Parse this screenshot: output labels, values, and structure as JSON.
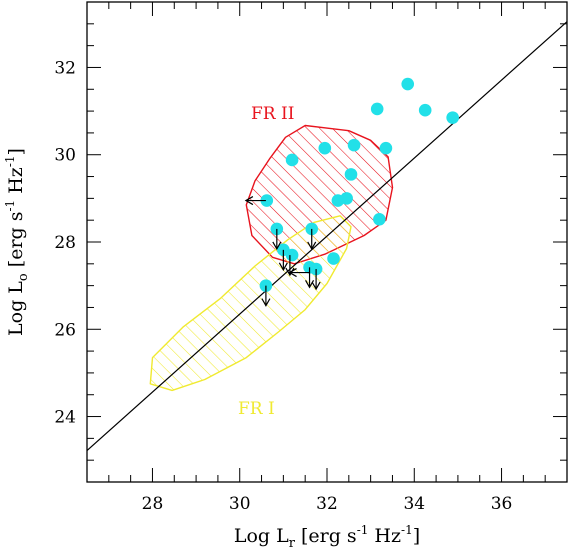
{
  "chart_data": {
    "type": "scatter",
    "xlabel": {
      "base": "Log L",
      "sub": "r",
      "rest": " [erg s",
      "sup1": "-1",
      "mid": " Hz",
      "sup2": "-1",
      "end": "]"
    },
    "ylabel": {
      "base": "Log L",
      "sub": "o",
      "rest": " [erg s",
      "sup1": "-1",
      "mid": " Hz",
      "sup2": "-1",
      "end": "]"
    },
    "xlim": [
      26.5,
      37.5
    ],
    "ylim": [
      22.5,
      33.5
    ],
    "x_ticks": [
      28,
      30,
      32,
      34,
      36
    ],
    "y_ticks": [
      24,
      26,
      28,
      30,
      32
    ],
    "x_tick_labels": [
      "28",
      "30",
      "32",
      "34",
      "36"
    ],
    "y_tick_labels": [
      "24",
      "26",
      "28",
      "30",
      "32"
    ],
    "grid": false,
    "points_color": "#22e0e8",
    "points": [
      {
        "x": 33.85,
        "y": 31.62
      },
      {
        "x": 34.25,
        "y": 31.02
      },
      {
        "x": 34.88,
        "y": 30.85
      },
      {
        "x": 33.15,
        "y": 31.05
      },
      {
        "x": 31.95,
        "y": 30.15
      },
      {
        "x": 32.62,
        "y": 30.22
      },
      {
        "x": 33.35,
        "y": 30.15
      },
      {
        "x": 31.2,
        "y": 29.88
      },
      {
        "x": 32.55,
        "y": 29.55
      },
      {
        "x": 30.62,
        "y": 28.95
      },
      {
        "x": 32.25,
        "y": 28.95
      },
      {
        "x": 32.45,
        "y": 29.0
      },
      {
        "x": 33.2,
        "y": 28.52
      },
      {
        "x": 30.85,
        "y": 28.3
      },
      {
        "x": 31.65,
        "y": 28.3
      },
      {
        "x": 31.0,
        "y": 27.82
      },
      {
        "x": 31.2,
        "y": 27.7
      },
      {
        "x": 32.15,
        "y": 27.62
      },
      {
        "x": 31.6,
        "y": 27.42
      },
      {
        "x": 31.75,
        "y": 27.38
      },
      {
        "x": 30.6,
        "y": 27.0
      }
    ],
    "upper_limits": [
      {
        "x": 30.6,
        "y": 28.95,
        "dir": "left"
      },
      {
        "x": 30.85,
        "y": 28.3,
        "dir": "down"
      },
      {
        "x": 31.65,
        "y": 28.3,
        "dir": "down"
      },
      {
        "x": 31.0,
        "y": 27.82,
        "dir": "down"
      },
      {
        "x": 31.15,
        "y": 27.7,
        "dir": "down"
      },
      {
        "x": 31.6,
        "y": 27.42,
        "dir": "down"
      },
      {
        "x": 31.75,
        "y": 27.38,
        "dir": "down"
      },
      {
        "x": 31.6,
        "y": 27.3,
        "dir": "left"
      },
      {
        "x": 30.6,
        "y": 27.0,
        "dir": "down"
      }
    ],
    "fit_line": {
      "x": [
        26.5,
        37.5
      ],
      "y": [
        23.22,
        33.05
      ]
    },
    "regions": [
      {
        "name": "FR II",
        "color": "#e8141e",
        "outline": [
          [
            31.5,
            30.67
          ],
          [
            32.5,
            30.55
          ],
          [
            33.0,
            30.33
          ],
          [
            33.4,
            29.95
          ],
          [
            33.5,
            29.25
          ],
          [
            33.35,
            28.5
          ],
          [
            32.85,
            28.15
          ],
          [
            31.95,
            27.72
          ],
          [
            31.25,
            27.5
          ],
          [
            30.75,
            27.65
          ],
          [
            30.28,
            28.15
          ],
          [
            30.15,
            28.85
          ],
          [
            30.35,
            29.4
          ],
          [
            30.68,
            29.9
          ],
          [
            31.05,
            30.4
          ]
        ]
      },
      {
        "name": "FR I",
        "color": "#f0ea30",
        "outline": [
          [
            32.55,
            28.35
          ],
          [
            32.45,
            27.85
          ],
          [
            32.0,
            27.05
          ],
          [
            31.5,
            26.45
          ],
          [
            30.9,
            25.95
          ],
          [
            30.15,
            25.35
          ],
          [
            29.2,
            24.85
          ],
          [
            28.45,
            24.6
          ],
          [
            27.95,
            24.75
          ],
          [
            28.0,
            25.35
          ],
          [
            28.7,
            26.05
          ],
          [
            29.55,
            26.7
          ],
          [
            30.35,
            27.45
          ],
          [
            31.1,
            28.05
          ],
          [
            31.7,
            28.45
          ],
          [
            32.3,
            28.6
          ]
        ]
      }
    ]
  }
}
